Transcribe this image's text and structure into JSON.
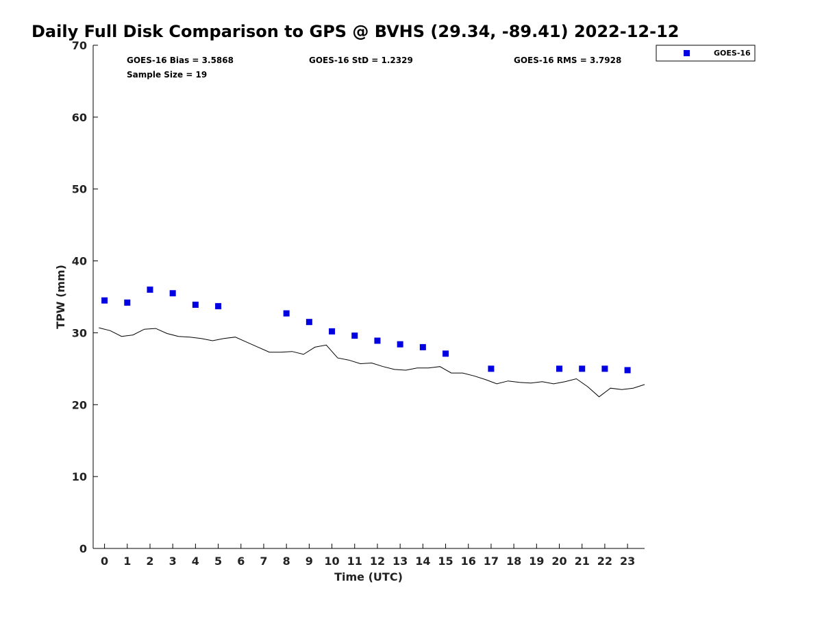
{
  "chart_data": {
    "type": "scatter",
    "title": "Daily Full Disk Comparison to GPS @ BVHS (29.34, -89.41) 2022-12-12",
    "xlabel": "Time (UTC)",
    "ylabel": "TPW (mm)",
    "xlim": [
      -0.5,
      23.75
    ],
    "ylim": [
      0,
      70
    ],
    "x_ticks": [
      0,
      1,
      2,
      3,
      4,
      5,
      6,
      7,
      8,
      9,
      10,
      11,
      12,
      13,
      14,
      15,
      16,
      17,
      18,
      19,
      20,
      21,
      22,
      23
    ],
    "x_tick_labels": [
      "0",
      "1",
      "2",
      "3",
      "4",
      "5",
      "6",
      "7",
      "8",
      "9",
      "10",
      "11",
      "12",
      "13",
      "14",
      "15",
      "16",
      "17",
      "18",
      "19",
      "20",
      "21",
      "22",
      "23"
    ],
    "y_ticks": [
      0,
      10,
      20,
      30,
      40,
      50,
      60,
      70
    ],
    "y_tick_labels": [
      "0",
      "10",
      "20",
      "30",
      "40",
      "50",
      "60",
      "70"
    ],
    "grid": false,
    "legend_position": "top-right outside",
    "stats": {
      "bias": "GOES-16 Bias = 3.5868",
      "std": "GOES-16 StD = 1.2329",
      "rms": "GOES-16 RMS = 3.7928",
      "sample_size": "Sample Size = 19"
    },
    "series": [
      {
        "name": "GOES-16",
        "type": "scatter",
        "color": "#0000e0",
        "marker": "square",
        "points": [
          [
            0,
            34.5
          ],
          [
            1,
            34.2
          ],
          [
            2,
            36.0
          ],
          [
            3,
            35.5
          ],
          [
            4,
            33.9
          ],
          [
            5,
            33.7
          ],
          [
            8,
            32.7
          ],
          [
            9,
            31.5
          ],
          [
            10,
            30.2
          ],
          [
            11,
            29.6
          ],
          [
            12,
            28.9
          ],
          [
            13,
            28.4
          ],
          [
            14,
            28.0
          ],
          [
            15,
            27.1
          ],
          [
            17,
            25.0
          ],
          [
            20,
            25.0
          ],
          [
            21,
            25.0
          ],
          [
            22,
            25.0
          ],
          [
            23,
            24.8
          ]
        ]
      },
      {
        "type": "line",
        "color": "#000000",
        "points": [
          [
            -0.25,
            30.7
          ],
          [
            0.25,
            30.3
          ],
          [
            0.75,
            29.5
          ],
          [
            1.25,
            29.7
          ],
          [
            1.75,
            30.5
          ],
          [
            2.25,
            30.6
          ],
          [
            2.75,
            29.9
          ],
          [
            3.25,
            29.5
          ],
          [
            3.75,
            29.4
          ],
          [
            4.25,
            29.2
          ],
          [
            4.75,
            28.9
          ],
          [
            5.25,
            29.2
          ],
          [
            5.75,
            29.4
          ],
          [
            6.25,
            28.7
          ],
          [
            6.75,
            28.0
          ],
          [
            7.25,
            27.3
          ],
          [
            7.75,
            27.3
          ],
          [
            8.25,
            27.4
          ],
          [
            8.75,
            27.0
          ],
          [
            9.25,
            28.0
          ],
          [
            9.75,
            28.3
          ],
          [
            10.25,
            26.5
          ],
          [
            10.75,
            26.2
          ],
          [
            11.25,
            25.7
          ],
          [
            11.75,
            25.8
          ],
          [
            12.25,
            25.3
          ],
          [
            12.75,
            24.9
          ],
          [
            13.25,
            24.8
          ],
          [
            13.75,
            25.1
          ],
          [
            14.25,
            25.1
          ],
          [
            14.75,
            25.3
          ],
          [
            15.25,
            24.4
          ],
          [
            15.75,
            24.4
          ],
          [
            16.25,
            24.0
          ],
          [
            16.75,
            23.5
          ],
          [
            17.25,
            22.9
          ],
          [
            17.75,
            23.3
          ],
          [
            18.25,
            23.1
          ],
          [
            18.75,
            23.0
          ],
          [
            19.25,
            23.2
          ],
          [
            19.75,
            22.9
          ],
          [
            20.25,
            23.2
          ],
          [
            20.75,
            23.6
          ],
          [
            21.25,
            22.5
          ],
          [
            21.75,
            21.1
          ],
          [
            22.25,
            22.3
          ],
          [
            22.75,
            22.1
          ],
          [
            23.25,
            22.3
          ],
          [
            23.75,
            22.8
          ]
        ]
      }
    ]
  }
}
